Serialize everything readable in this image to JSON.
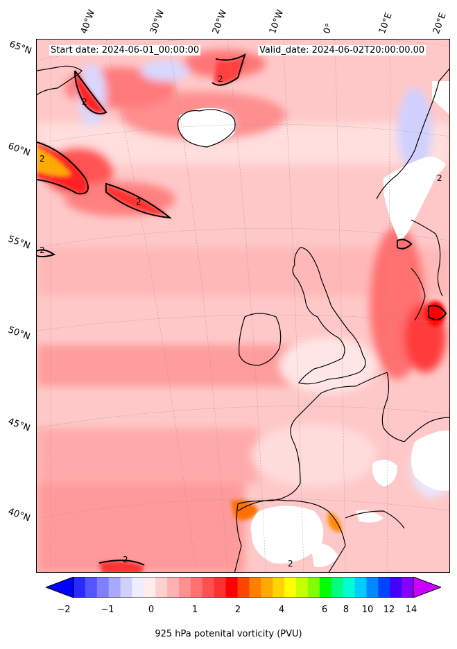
{
  "header": {
    "start_date": "Start date: 2024-06-01_00:00:00",
    "valid_date": "Valid_date: 2024-06-02T20:00:00.00"
  },
  "longitude_labels": [
    "40°W",
    "30°W",
    "20°W",
    "10°W",
    "0°",
    "10°E",
    "20°E"
  ],
  "latitude_labels": [
    "65°N",
    "60°N",
    "55°N",
    "50°N",
    "45°N",
    "40°N"
  ],
  "contour_labels": [
    "2",
    "2",
    "2",
    "2",
    "2",
    "2",
    "2",
    "2"
  ],
  "colorbar": {
    "ticks": [
      "−2",
      "−1",
      "0",
      "1",
      "2",
      "4",
      "6",
      "8",
      "10",
      "12",
      "14"
    ],
    "colors": [
      "#0000ff",
      "#2a2aff",
      "#5555ff",
      "#8080ff",
      "#a8a8ff",
      "#d0d0ff",
      "#eeeeff",
      "#ffecec",
      "#ffd0d0",
      "#ffb0b0",
      "#ff9090",
      "#ff7070",
      "#ff5050",
      "#ff3030",
      "#ff0000",
      "#ff4400",
      "#ff8000",
      "#ffaa00",
      "#ffd400",
      "#ffff00",
      "#c8ff00",
      "#80ff00",
      "#00ff00",
      "#00ff80",
      "#00ffd0",
      "#00ccff",
      "#0088ff",
      "#0044ff",
      "#4400ff",
      "#8800ff",
      "#cc00ff"
    ],
    "label": "925 hPa potenital vorticity (PVU)"
  }
}
